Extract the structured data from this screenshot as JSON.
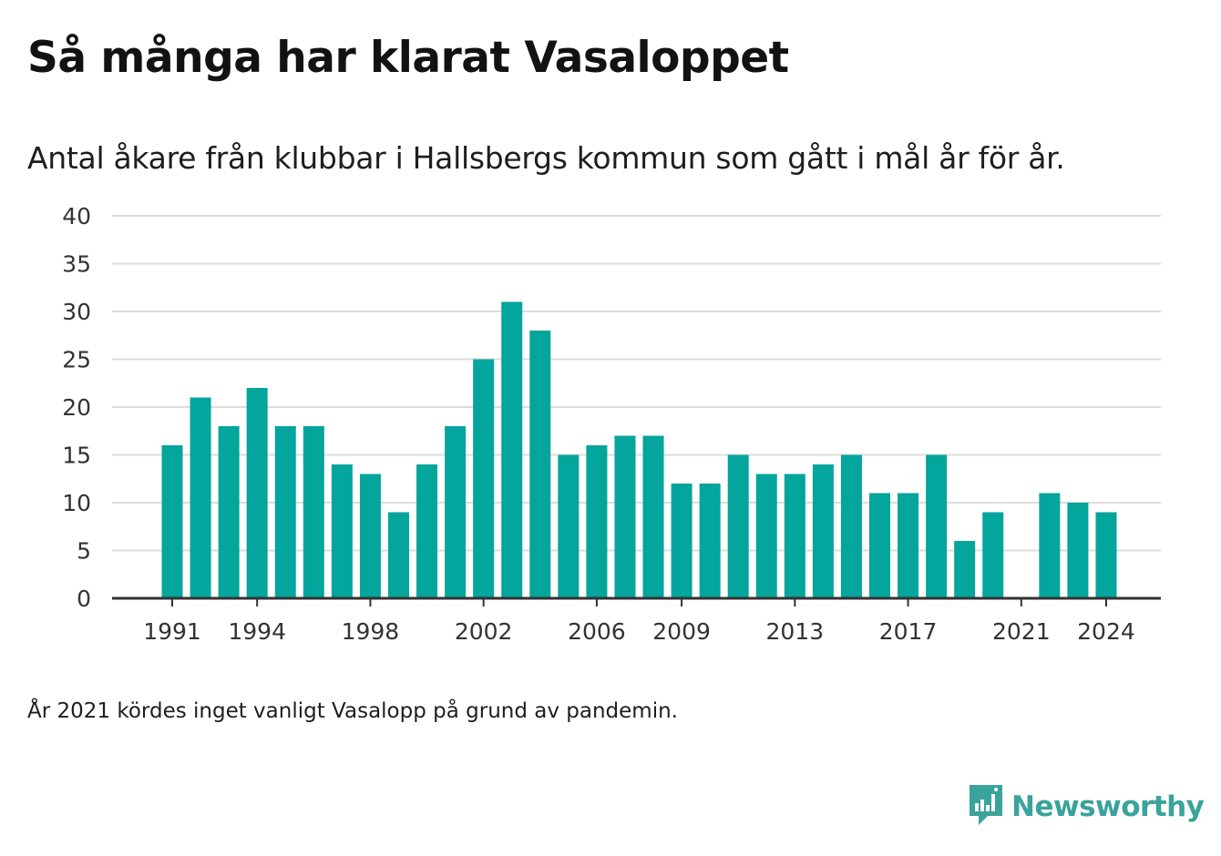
{
  "header": {
    "title": "Så många har klarat Vasaloppet",
    "subtitle": "Antal åkare från klubbar i Hallsbergs kommun som gått i mål år för år."
  },
  "note": "År 2021 kördes inget vanligt Vasalopp på grund av pandemin.",
  "brand": {
    "name": "Newsworthy",
    "icon": "newsworthy-logo-icon",
    "color": "#3aa39b"
  },
  "colors": {
    "bar": "#03a59c",
    "grid": "#dcdcdc",
    "axis": "#333333",
    "text": "#333333"
  },
  "chart_data": {
    "type": "bar",
    "categories": [
      1991,
      1992,
      1993,
      1994,
      1995,
      1996,
      1997,
      1998,
      1999,
      2000,
      2001,
      2002,
      2003,
      2004,
      2005,
      2006,
      2007,
      2008,
      2009,
      2010,
      2011,
      2012,
      2013,
      2014,
      2015,
      2016,
      2017,
      2018,
      2019,
      2020,
      2021,
      2022,
      2023,
      2024
    ],
    "values": [
      16,
      21,
      18,
      22,
      18,
      18,
      14,
      13,
      9,
      14,
      18,
      25,
      31,
      28,
      15,
      16,
      17,
      17,
      12,
      12,
      15,
      13,
      13,
      14,
      15,
      11,
      11,
      15,
      6,
      9,
      null,
      11,
      10,
      9
    ],
    "x_tick_labels": [
      "1991",
      "1994",
      "1998",
      "2002",
      "2006",
      "2009",
      "2013",
      "2017",
      "2021",
      "2024"
    ],
    "y_ticks": [
      0,
      5,
      10,
      15,
      20,
      25,
      30,
      35,
      40
    ],
    "ylim": [
      0,
      40
    ],
    "grid": true,
    "legend": "none"
  }
}
